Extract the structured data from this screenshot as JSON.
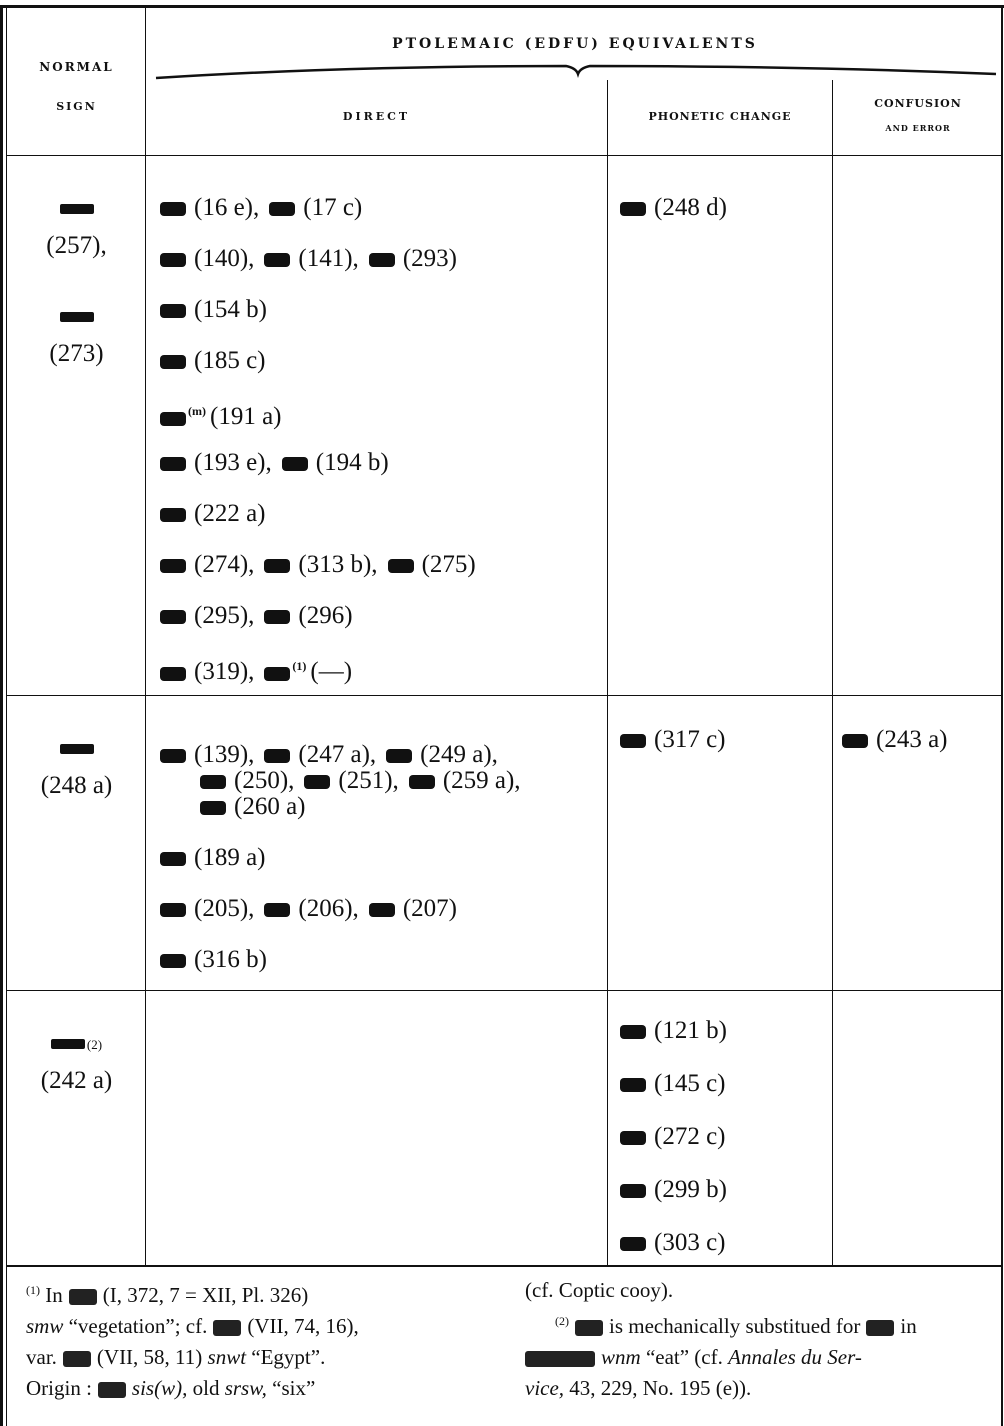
{
  "header": {
    "normal": "NORMAL",
    "sign": "SIGN",
    "title": "PTOLEMAIC (EDFU) EQUIVALENTS",
    "direct": "DIRECT",
    "phonetic": "PHONETIC CHANGE",
    "confusion": "CONFUSION",
    "error": "AND ERROR"
  },
  "rows": [
    {
      "normal": [
        {
          "ref": "(257),"
        },
        {
          "ref": "(273)"
        }
      ],
      "direct": [
        [
          "(16 e),",
          "(17 c)"
        ],
        [
          "(140),",
          "(141),",
          "(293)"
        ],
        [
          "(154 b)"
        ],
        [
          "(185 c)"
        ],
        [
          {
            "sup": "(m)",
            "ref": "(191 a)"
          }
        ],
        [
          "(193 e),",
          "(194 b)"
        ],
        [
          "(222 a)"
        ],
        [
          "(274),",
          "(313 b),",
          "(275)"
        ],
        [
          "(295),",
          "(296)"
        ],
        [
          "(319),",
          {
            "sup": "(1)",
            "ref": "(—)"
          }
        ]
      ],
      "phonetic": [
        [
          "(248 d)"
        ]
      ],
      "confusion": []
    },
    {
      "normal": [
        {
          "ref": "(248 a)"
        }
      ],
      "direct": [
        [
          "(139),",
          "(247 a),",
          "(249 a),"
        ],
        [
          "(250),",
          "(251),",
          "(259 a),"
        ],
        [
          "(260 a)"
        ],
        [
          "(189 a)"
        ],
        [
          "(205),",
          "(206),",
          "(207)"
        ],
        [
          "(316 b)"
        ]
      ],
      "phonetic": [
        [
          "(317 c)"
        ]
      ],
      "confusion": [
        [
          "(243 a)"
        ]
      ]
    },
    {
      "normal": [
        {
          "sup": "(2)",
          "ref": "(242 a)"
        }
      ],
      "direct": [],
      "phonetic": [
        [
          "(121 b)"
        ],
        [
          "(145 c)"
        ],
        [
          "(272 c)"
        ],
        [
          "(299 b)"
        ],
        [
          "(303 c)"
        ]
      ],
      "confusion": []
    }
  ],
  "footnotes": {
    "left": [
      [
        "(1)",
        "In",
        "(I, 372, 7 = XII, Pl. 326)"
      ],
      [
        "smw",
        "“vegetation”; cf.",
        "(VII, 74, 16),"
      ],
      [
        "var.",
        "(VII, 58, 11)",
        "snwt",
        "“Egypt”."
      ],
      [
        "Origin :",
        "sis(w),",
        "old",
        "srsw,",
        "“six”"
      ]
    ],
    "right": [
      [
        "(cf. Coptic cooy)."
      ],
      [
        "(2)",
        "is mechanically substitued for",
        "in"
      ],
      [
        "wnm",
        "“eat” (cf.",
        "Annales du Ser-"
      ],
      [
        "vice,",
        "43, 229, No. 195 (e))."
      ]
    ]
  }
}
